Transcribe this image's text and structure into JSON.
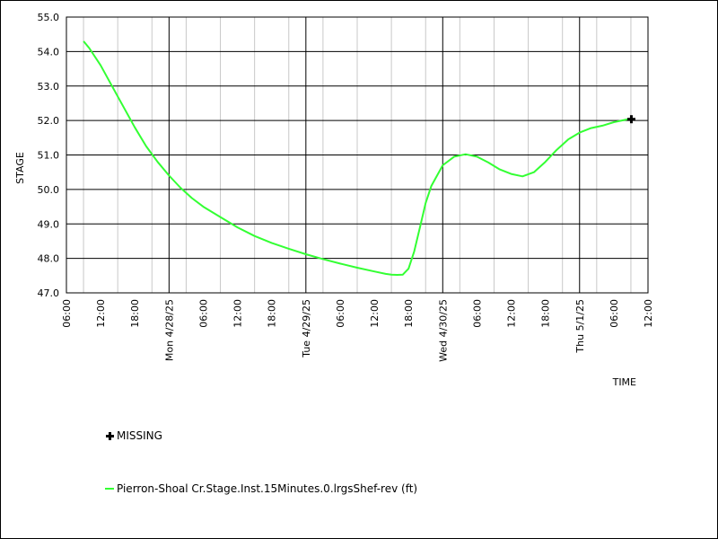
{
  "chart_data": {
    "type": "line",
    "xlabel": "TIME",
    "ylabel": "STAGE",
    "ylim": [
      47.0,
      55.0
    ],
    "y_ticks": [
      "47.0",
      "48.0",
      "49.0",
      "50.0",
      "51.0",
      "52.0",
      "53.0",
      "54.0",
      "55.0"
    ],
    "x_ticks": [
      "06:00",
      "12:00",
      "18:00",
      "Mon 4/28/25",
      "06:00",
      "12:00",
      "18:00",
      "Tue 4/29/25",
      "06:00",
      "12:00",
      "18:00",
      "Wed 4/30/25",
      "06:00",
      "12:00",
      "18:00",
      "Thu 5/1/25",
      "06:00",
      "12:00"
    ],
    "x_range_hours": [
      0,
      102
    ],
    "grid": true,
    "colors": {
      "series": "#33ff33",
      "major_grid": "#000000",
      "minor_grid": "#c8c8c8"
    },
    "series": [
      {
        "name": "Pierron-Shoal Cr.Stage.Inst.15Minutes.0.lrgsShef-rev (ft)",
        "x_hours": [
          3,
          4,
          6,
          8,
          10,
          12,
          14,
          16,
          18,
          20,
          22,
          24,
          27,
          30,
          33,
          36,
          39,
          42,
          45,
          48,
          51,
          54,
          56,
          57,
          58,
          59,
          60,
          61,
          62,
          63,
          64,
          66,
          68,
          70,
          72,
          74,
          76,
          78,
          80,
          82,
          84,
          86,
          88,
          90,
          92,
          94,
          96,
          98,
          99
        ],
        "values": [
          54.3,
          54.1,
          53.6,
          53.0,
          52.4,
          51.8,
          51.25,
          50.8,
          50.4,
          50.05,
          49.75,
          49.5,
          49.2,
          48.9,
          48.65,
          48.45,
          48.28,
          48.12,
          47.98,
          47.85,
          47.73,
          47.62,
          47.55,
          47.53,
          47.52,
          47.53,
          47.7,
          48.2,
          48.9,
          49.6,
          50.1,
          50.7,
          50.95,
          51.02,
          50.95,
          50.78,
          50.58,
          50.45,
          50.38,
          50.5,
          50.8,
          51.15,
          51.45,
          51.65,
          51.78,
          51.85,
          51.95,
          52.02,
          52.05
        ]
      }
    ],
    "missing_points": [
      {
        "x_hours": 99,
        "value": 52.05
      }
    ],
    "legend": {
      "missing_label": "MISSING",
      "series_label": "Pierron-Shoal Cr.Stage.Inst.15Minutes.0.lrgsShef-rev (ft)"
    }
  }
}
